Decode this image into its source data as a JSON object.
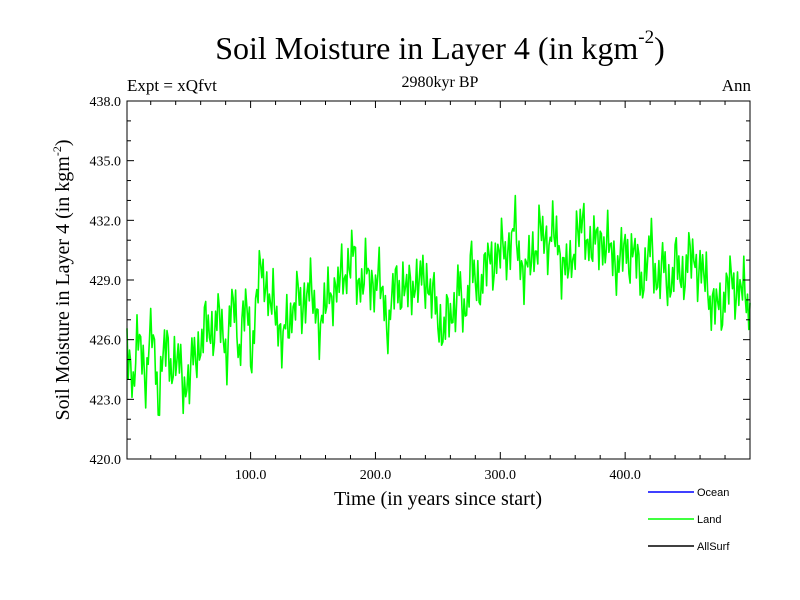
{
  "title": {
    "main": "Soil Moisture in Layer 4 (in kgm",
    "sup": "-2",
    "close": ")"
  },
  "expt_label": "Expt = xQfvt",
  "subtitle": "2980kyr BP",
  "season": "Ann",
  "chart_data": {
    "type": "line",
    "title": "Soil Moisture in Layer 4 (in kgm-2)",
    "xlabel": "Time (in years since start)",
    "ylabel": "Soil Moisture in Layer 4 (in kgm-2)",
    "ylabel_main": "Soil Moisture in Layer 4 (in kgm",
    "ylabel_sup": "-2",
    "ylabel_close": ")",
    "xlim": [
      1,
      500
    ],
    "ylim": [
      420.0,
      438.0
    ],
    "x_ticks": [
      100,
      200,
      300,
      400
    ],
    "x_tick_labels": [
      "100.0",
      "200.0",
      "300.0",
      "400.0"
    ],
    "y_ticks": [
      420,
      423,
      426,
      429,
      432,
      435,
      438
    ],
    "y_tick_labels": [
      "420.0",
      "423.0",
      "426.0",
      "429.0",
      "432.0",
      "435.0",
      "438.0"
    ],
    "legend": [
      {
        "name": "Ocean",
        "color": "#0000ff"
      },
      {
        "name": "Land",
        "color": "#00ff00"
      },
      {
        "name": "AllSurf",
        "color": "#000000"
      }
    ],
    "series": [
      {
        "name": "Land",
        "color": "#00ff00",
        "x_start": 1,
        "x_step": 5,
        "values": [
          425.8,
          424.2,
          425.9,
          424.4,
          426.3,
          423.4,
          425.4,
          425.1,
          424.8,
          424.0,
          423.9,
          425.4,
          426.1,
          426.6,
          426.7,
          426.8,
          425.6,
          427.8,
          425.9,
          427.5,
          425.6,
          428.7,
          429.6,
          427.6,
          427.3,
          426.0,
          426.7,
          428.6,
          427.0,
          429.3,
          427.2,
          427.1,
          427.7,
          428.7,
          428.6,
          429.6,
          430.2,
          429.0,
          429.3,
          428.8,
          429.2,
          428.0,
          426.9,
          428.7,
          428.9,
          428.1,
          429.2,
          428.6,
          429.4,
          427.9,
          427.0,
          426.6,
          427.2,
          428.8,
          426.8,
          430.1,
          428.2,
          429.6,
          429.6,
          430.4,
          430.2,
          430.7,
          431.4,
          430.2,
          429.1,
          430.5,
          431.3,
          430.8,
          431.6,
          430.5,
          430.0,
          429.1,
          431.8,
          431.3,
          431.2,
          430.5,
          431.3,
          430.5,
          430.2,
          429.8,
          430.6,
          430.4,
          429.4,
          429.4,
          430.6,
          429.1,
          429.4,
          429.0,
          429.6,
          429.4,
          429.8,
          430.3,
          429.1,
          428.9,
          427.5,
          427.5,
          428.7,
          428.6,
          428.9,
          427.9
        ]
      }
    ]
  }
}
